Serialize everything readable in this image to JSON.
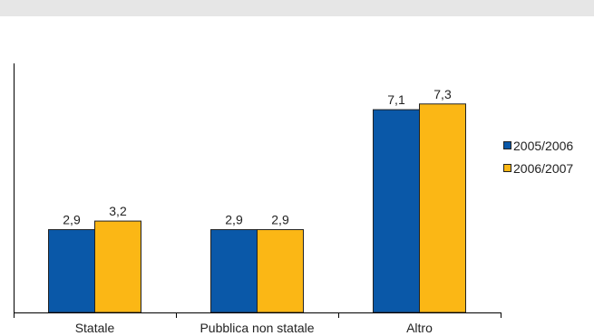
{
  "chart_data": {
    "type": "bar",
    "title": "",
    "xlabel": "",
    "ylabel": "",
    "categories": [
      "Statale",
      "Pubblica non statale",
      "Altro"
    ],
    "series": [
      {
        "name": "2005/2006",
        "values": [
          2.9,
          2.9,
          7.1
        ],
        "labels": [
          "2,9",
          "2,9",
          "7,1"
        ],
        "color": "#0a58a8"
      },
      {
        "name": "2006/2007",
        "values": [
          3.2,
          2.9,
          7.3
        ],
        "labels": [
          "3,2",
          "2,9",
          "7,3"
        ],
        "color": "#fbb715"
      }
    ],
    "ylim": [
      0,
      8.72
    ],
    "grid": false,
    "legend_position": "right"
  },
  "colors": {
    "series_border": "#222222",
    "axis": "#000000",
    "top_band": "#e6e6e6"
  }
}
